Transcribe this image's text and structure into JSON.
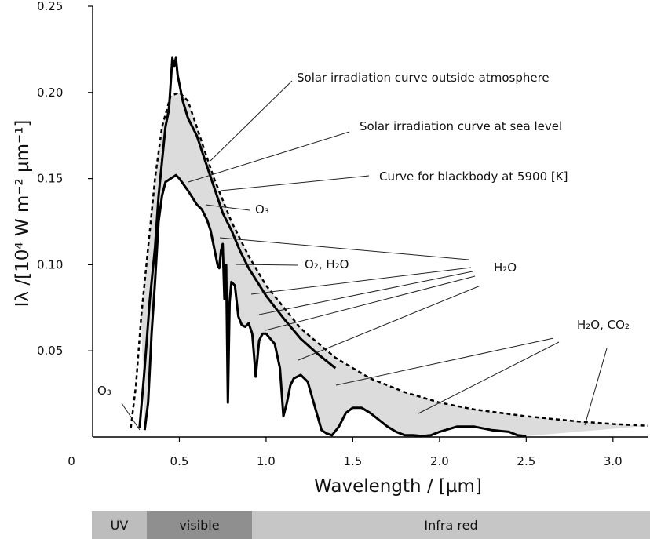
{
  "chart_data": {
    "type": "line",
    "xlabel": "Wavelength / [µm]",
    "ylabel": "Iλ /[10⁴ W m⁻² µm⁻¹]",
    "xlim": [
      0,
      3.2
    ],
    "ylim": [
      0,
      0.25
    ],
    "x_ticks": [
      "0",
      "0.5",
      "1.0",
      "1.5",
      "2.0",
      "2.5",
      "3.0"
    ],
    "y_ticks": [
      "0.05",
      "0.10",
      "0.15",
      "0.20",
      "0.25"
    ],
    "grid": false,
    "series": [
      {
        "name": "Solar irradiation curve outside atmosphere",
        "style": "solid",
        "x": [
          0.27,
          0.3,
          0.33,
          0.36,
          0.38,
          0.4,
          0.42,
          0.44,
          0.46,
          0.47,
          0.48,
          0.49,
          0.5,
          0.52,
          0.55,
          0.6,
          0.65,
          0.7,
          0.75,
          0.8,
          0.85,
          0.9,
          1.0,
          1.1,
          1.2,
          1.3,
          1.4
        ],
        "y": [
          0.005,
          0.04,
          0.08,
          0.11,
          0.14,
          0.16,
          0.18,
          0.19,
          0.22,
          0.215,
          0.22,
          0.21,
          0.205,
          0.195,
          0.185,
          0.175,
          0.16,
          0.145,
          0.13,
          0.12,
          0.108,
          0.098,
          0.082,
          0.069,
          0.057,
          0.048,
          0.04
        ]
      },
      {
        "name": "Solar irradiation curve at sea level",
        "style": "solid",
        "x": [
          0.3,
          0.32,
          0.34,
          0.36,
          0.38,
          0.4,
          0.42,
          0.45,
          0.48,
          0.5,
          0.55,
          0.6,
          0.63,
          0.66,
          0.68,
          0.7,
          0.72,
          0.73,
          0.74,
          0.75,
          0.76,
          0.77,
          0.78,
          0.79,
          0.8,
          0.82,
          0.84,
          0.86,
          0.88,
          0.9,
          0.92,
          0.93,
          0.94,
          0.96,
          0.98,
          1.0,
          1.05,
          1.08,
          1.1,
          1.12,
          1.14,
          1.16,
          1.2,
          1.24,
          1.28,
          1.32,
          1.35,
          1.38,
          1.42,
          1.46,
          1.5,
          1.55,
          1.6,
          1.65,
          1.7,
          1.75,
          1.8,
          1.85,
          1.9,
          1.95,
          2.0,
          2.1,
          2.2,
          2.3,
          2.4,
          2.45,
          2.5
        ],
        "y": [
          0.004,
          0.02,
          0.06,
          0.09,
          0.125,
          0.14,
          0.148,
          0.15,
          0.152,
          0.15,
          0.143,
          0.135,
          0.132,
          0.126,
          0.12,
          0.11,
          0.1,
          0.098,
          0.108,
          0.112,
          0.08,
          0.1,
          0.02,
          0.078,
          0.09,
          0.088,
          0.07,
          0.065,
          0.064,
          0.066,
          0.06,
          0.048,
          0.035,
          0.056,
          0.06,
          0.06,
          0.054,
          0.04,
          0.012,
          0.02,
          0.03,
          0.034,
          0.036,
          0.032,
          0.018,
          0.004,
          0.002,
          0.001,
          0.006,
          0.014,
          0.017,
          0.017,
          0.014,
          0.01,
          0.006,
          0.003,
          0.001,
          0.001,
          0.0005,
          0.001,
          0.003,
          0.006,
          0.006,
          0.004,
          0.003,
          0.001,
          0.0005
        ]
      },
      {
        "name": "Curve for blackbody at 5900 [K]",
        "style": "dashed",
        "x": [
          0.22,
          0.25,
          0.28,
          0.3,
          0.33,
          0.36,
          0.4,
          0.45,
          0.5,
          0.55,
          0.6,
          0.65,
          0.7,
          0.8,
          0.9,
          1.0,
          1.2,
          1.4,
          1.6,
          1.8,
          2.0,
          2.2,
          2.5,
          2.8,
          3.0,
          3.2
        ],
        "y": [
          0.005,
          0.03,
          0.07,
          0.09,
          0.12,
          0.15,
          0.18,
          0.198,
          0.2,
          0.195,
          0.18,
          0.165,
          0.15,
          0.125,
          0.105,
          0.088,
          0.063,
          0.046,
          0.034,
          0.026,
          0.02,
          0.016,
          0.012,
          0.009,
          0.0075,
          0.0065
        ]
      }
    ],
    "absorption_regions": [
      {
        "label": "O₃",
        "x": [
          0.2,
          0.32
        ]
      },
      {
        "label": "O₂, H₂O",
        "x": [
          0.76,
          0.8
        ]
      },
      {
        "label": "H₂O",
        "x": [
          0.8,
          1.4
        ]
      },
      {
        "label": "H₂O, CO₂",
        "x": [
          1.35,
          3.2
        ]
      }
    ],
    "annotations": [
      "Solar irradiation curve outside atmosphere",
      "Solar irradiation curve at sea level",
      "Curve for blackbody at 5900 [K]",
      "O₃",
      "O₂, H₂O",
      "H₂O",
      "H₂O, CO₂",
      "O₃"
    ],
    "spectrum_bands": [
      {
        "label": "UV",
        "x": [
          0.0,
          0.28
        ],
        "color": "#bdbdbd"
      },
      {
        "label": "visible",
        "x": [
          0.28,
          0.82
        ],
        "color": "#8f8f8f"
      },
      {
        "label": "Infra red",
        "x": [
          0.82,
          3.2
        ],
        "color": "#c6c6c6"
      }
    ],
    "colors": {
      "absorption_fill": "#dcdcdc",
      "curves": "#000000"
    }
  }
}
